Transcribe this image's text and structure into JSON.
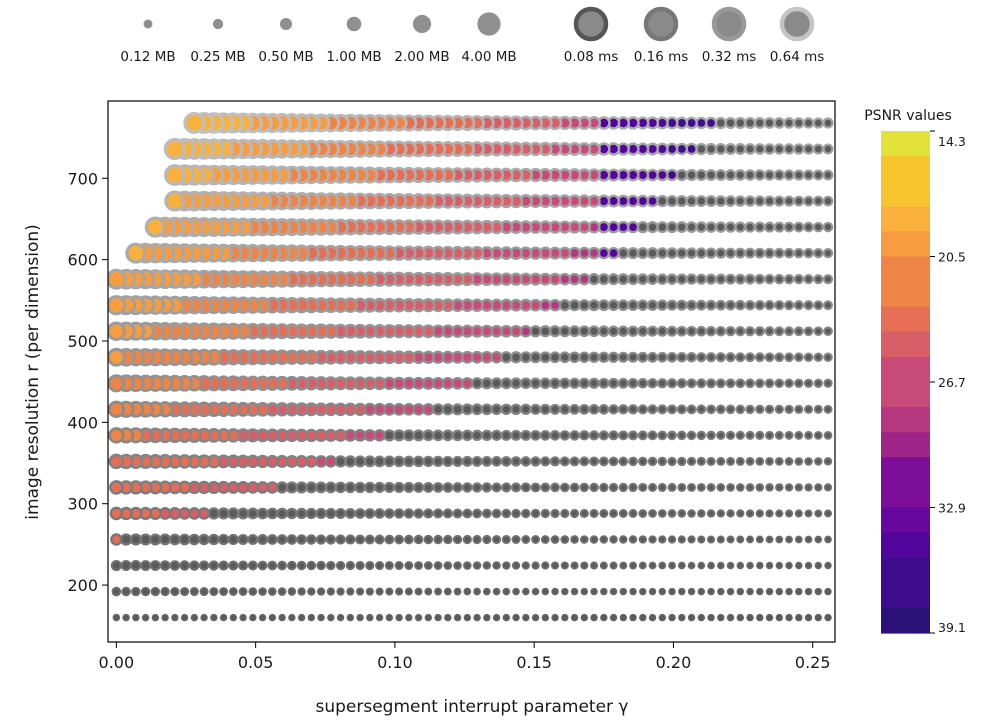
{
  "chart_data": {
    "type": "scatter",
    "title": "",
    "xlabel": "supersegment interrupt parameter γ",
    "ylabel": "image resolution r (per dimension)",
    "xlim": [
      -0.003,
      0.258
    ],
    "ylim": [
      130,
      795
    ],
    "x_ticks": [
      0.0,
      0.05,
      0.1,
      0.15,
      0.2,
      0.25
    ],
    "x_tick_labels": [
      "0.00",
      "0.05",
      "0.10",
      "0.15",
      "0.20",
      "0.25"
    ],
    "y_ticks": [
      200,
      300,
      400,
      500,
      600,
      700
    ],
    "y_tick_labels": [
      "200",
      "300",
      "400",
      "500",
      "600",
      "700"
    ],
    "grid": false,
    "x_grid": {
      "start": 0.0,
      "step": 0.0035,
      "count": 74
    },
    "resolutions": [
      160,
      192,
      224,
      256,
      288,
      320,
      352,
      384,
      416,
      448,
      480,
      512,
      544,
      576,
      608,
      640,
      672,
      704,
      736,
      768
    ],
    "row_min_gamma": [
      0.0,
      0.0,
      0.0,
      0.0,
      0.0,
      0.0,
      0.0,
      0.0,
      0.0,
      0.0,
      0.0,
      0.0,
      0.0,
      0.0,
      0.007,
      0.014,
      0.021,
      0.021,
      0.021,
      0.028
    ],
    "size_encoding": "file size (MB)",
    "edge_encoding": "runtime (ms)",
    "color_encoding": "PSNR",
    "size_legend": {
      "values": [
        0.12,
        0.25,
        0.5,
        1.0,
        2.0,
        4.0
      ],
      "labels": [
        "0.12 MB",
        "0.25 MB",
        "0.50 MB",
        "1.00 MB",
        "2.00 MB",
        "4.00 MB"
      ]
    },
    "time_legend": {
      "values": [
        0.08,
        0.16,
        0.32,
        0.64
      ],
      "labels": [
        "0.08 ms",
        "0.16 ms",
        "0.32 ms",
        "0.64 ms"
      ],
      "edge_colors": [
        "#555555",
        "#777777",
        "#999999",
        "#c4c4c4"
      ]
    },
    "colorbar": {
      "title": "PSNR values",
      "min": 14.3,
      "max": 39.1,
      "ticks": [
        14.3,
        20.5,
        26.7,
        32.9,
        39.1
      ],
      "tick_labels": [
        "14.3",
        "20.5",
        "26.7",
        "32.9",
        "39.1"
      ],
      "bands": 20,
      "colors": [
        "#e3e23a",
        "#f6c52d",
        "#f9b13c",
        "#f79c3f",
        "#ef8447",
        "#e66e55",
        "#d85e67",
        "#c84a76",
        "#b5377f",
        "#a02589",
        "#7c0e97",
        "#67079d",
        "#52059b",
        "#3e0c8d",
        "#2b1279"
      ],
      "colormap": "plasma (reversed)"
    }
  }
}
